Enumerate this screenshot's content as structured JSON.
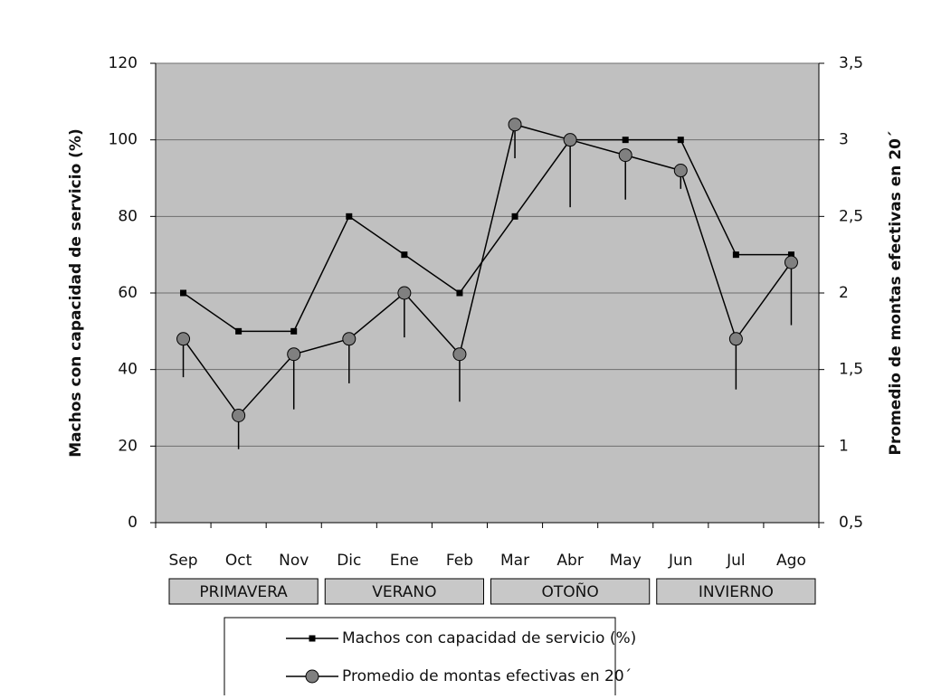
{
  "chart_data": {
    "type": "line",
    "categories": [
      "Sep",
      "Oct",
      "Nov",
      "Dic",
      "Ene",
      "Feb",
      "Mar",
      "Abr",
      "May",
      "Jun",
      "Jul",
      "Ago"
    ],
    "groups": [
      "PRIMAVERA",
      "VERANO",
      "OTOÑO",
      "INVIERNO"
    ],
    "ylabel": "Machos con capacidad  de servicio (%)",
    "y2label": "Promedio de  montas efectivas en 20´",
    "ylim": [
      0,
      120
    ],
    "yticks": [
      0,
      20,
      40,
      60,
      80,
      100,
      120
    ],
    "y2lim": [
      0.5,
      3.5
    ],
    "y2ticks": [
      {
        "value": 0.5,
        "label": "0,5"
      },
      1,
      {
        "value": 1.5,
        "label": "1,5"
      },
      2,
      {
        "value": 2.5,
        "label": "2,5"
      },
      3,
      {
        "value": 3.5,
        "label": "3,5"
      }
    ],
    "grid": true,
    "legend": "bottom",
    "background": "#c0c0c0",
    "series": [
      {
        "name": "Machos con capacidad de servicio (%)",
        "color": "#000000",
        "marker": "square",
        "values": [
          60,
          50,
          50,
          80,
          70,
          60,
          80,
          100,
          100,
          100,
          70,
          70
        ]
      },
      {
        "name": "Promedio de montas efectivas en 20´",
        "color": "#808080",
        "marker": "circle",
        "axis": "y2",
        "values": [
          1.7,
          1.2,
          1.6,
          1.7,
          2.0,
          1.6,
          3.1,
          3.0,
          2.9,
          2.8,
          1.7,
          2.2
        ],
        "errors": [
          0.25,
          0.22,
          0.36,
          0.29,
          0.29,
          0.31,
          0.22,
          0.44,
          0.29,
          0.12,
          0.33,
          0.41
        ]
      }
    ]
  }
}
